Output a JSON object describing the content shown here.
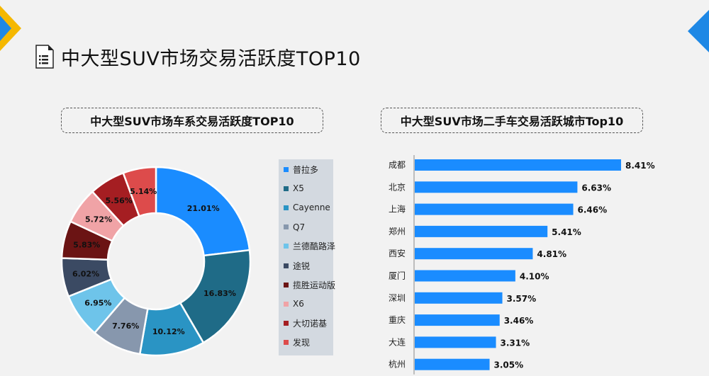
{
  "page": {
    "title": "中大型SUV市场交易活跃度TOP10"
  },
  "left_panel": {
    "title": "中大型SUV市场车系交易活跃度TOP10"
  },
  "right_panel": {
    "title": "中大型SUV市场二手车交易活跃城市Top10"
  },
  "colors": {
    "accent_yellow": "#f5b800",
    "accent_blue": "#1e88e5",
    "bar": "#1a8cff"
  },
  "chart_data": [
    {
      "type": "pie",
      "donut": true,
      "title": "中大型SUV市场车系交易活跃度TOP10",
      "legend_position": "right",
      "categories": [
        "普拉多",
        "X5",
        "Cayenne",
        "Q7",
        "兰德酷路泽",
        "途锐",
        "揽胜运动版",
        "X6",
        "大切诺基",
        "发现"
      ],
      "values": [
        21.01,
        16.83,
        10.12,
        7.76,
        6.95,
        6.02,
        5.83,
        5.72,
        5.56,
        5.14
      ],
      "labels": [
        "21.01%",
        "16.83%",
        "10.12%",
        "7.76%",
        "6.95%",
        "6.02%",
        "5.83%",
        "5.72%",
        "5.56%",
        "5.14%"
      ],
      "colors": [
        "#1a8cff",
        "#1f6b87",
        "#2a94c4",
        "#8797ad",
        "#6ec4ea",
        "#3b4a63",
        "#6b1414",
        "#f0a3a6",
        "#a51e22",
        "#dd4b4b"
      ]
    },
    {
      "type": "bar",
      "orientation": "horizontal",
      "title": "中大型SUV市场二手车交易活跃城市Top10",
      "categories": [
        "成都",
        "北京",
        "上海",
        "郑州",
        "西安",
        "厦门",
        "深圳",
        "重庆",
        "大连",
        "杭州"
      ],
      "values": [
        8.41,
        6.63,
        6.46,
        5.41,
        4.81,
        4.1,
        3.57,
        3.46,
        3.31,
        3.05
      ],
      "labels": [
        "8.41%",
        "6.63%",
        "6.46%",
        "5.41%",
        "4.81%",
        "4.10%",
        "3.57%",
        "3.46%",
        "3.31%",
        "3.05%"
      ],
      "color": "#1a8cff",
      "grid": false
    }
  ]
}
